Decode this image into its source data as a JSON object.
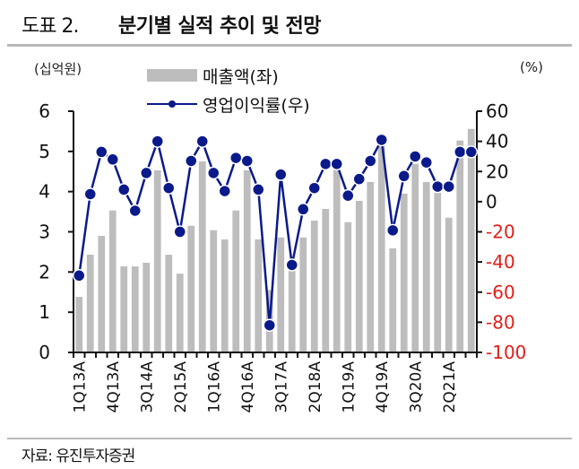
{
  "header": {
    "figure_number": "도표 2.",
    "title": "분기별 실적 추이 및 전망"
  },
  "axes": {
    "left_unit": "(십억원)",
    "right_unit": "(%)"
  },
  "legend": {
    "bar_label": "매출액(좌)",
    "line_label": "영업이익률(우)"
  },
  "footer": {
    "source": "자료: 유진투자증권"
  },
  "colors": {
    "bar": "#bdbdbd",
    "line": "#0a1a8a",
    "negative_tick": "#e0201b",
    "rule": "#b9b9b9"
  },
  "chart_data": {
    "type": "bar+line",
    "title": "분기별 실적 추이 및 전망",
    "categories": [
      "1Q13A",
      "2Q13A",
      "3Q13A",
      "4Q13A",
      "1Q14A",
      "2Q14A",
      "3Q14A",
      "4Q14A",
      "1Q15A",
      "2Q15A",
      "3Q15A",
      "4Q15A",
      "1Q16A",
      "2Q16A",
      "3Q16A",
      "4Q16A",
      "1Q17A",
      "2Q17A",
      "3Q17A",
      "4Q17A",
      "1Q18A",
      "2Q18A",
      "3Q18A",
      "4Q18A",
      "1Q19A",
      "2Q19A",
      "3Q19A",
      "4Q19A",
      "1Q20A",
      "2Q20A",
      "3Q20A",
      "4Q20A",
      "1Q21A",
      "2Q21A",
      "3Q21F",
      "4Q21F"
    ],
    "visible_tick_labels": [
      "1Q13A",
      "4Q13A",
      "3Q14A",
      "2Q15A",
      "1Q16A",
      "4Q16A",
      "3Q17A",
      "2Q18A",
      "1Q19A",
      "4Q19A",
      "3Q20A",
      "2Q21A"
    ],
    "series": [
      {
        "name": "매출액(좌)",
        "type": "bar",
        "axis": "left",
        "values": [
          1.38,
          2.43,
          2.9,
          3.53,
          2.14,
          2.14,
          2.23,
          4.53,
          2.43,
          1.96,
          3.15,
          4.75,
          3.04,
          2.81,
          3.53,
          4.53,
          2.81,
          1.55,
          2.86,
          2.07,
          2.86,
          3.28,
          3.57,
          4.55,
          3.24,
          3.77,
          4.24,
          5.2,
          2.59,
          3.95,
          4.69,
          4.24,
          3.97,
          3.35,
          5.27,
          5.56
        ]
      },
      {
        "name": "영업이익률(우)",
        "type": "line",
        "axis": "right",
        "values": [
          -49,
          5,
          33,
          28,
          8,
          -6,
          19,
          40,
          9,
          -20,
          27,
          40,
          19,
          7,
          29,
          27,
          8,
          -82,
          18,
          -42,
          -5,
          9,
          25,
          25,
          4,
          15,
          27,
          41,
          -19,
          17,
          30,
          26,
          10,
          10,
          33,
          33
        ]
      }
    ],
    "xlabel": "",
    "ylabel_left": "(십억원)",
    "ylabel_right": "(%)",
    "ylim_left": [
      0,
      6
    ],
    "yticks_left": [
      0,
      1,
      2,
      3,
      4,
      5,
      6
    ],
    "ylim_right": [
      -100,
      60
    ],
    "yticks_right": [
      60,
      40,
      20,
      0,
      -20,
      -40,
      -60,
      -80,
      -100
    ],
    "grid": false,
    "legend_position": "top-center"
  }
}
